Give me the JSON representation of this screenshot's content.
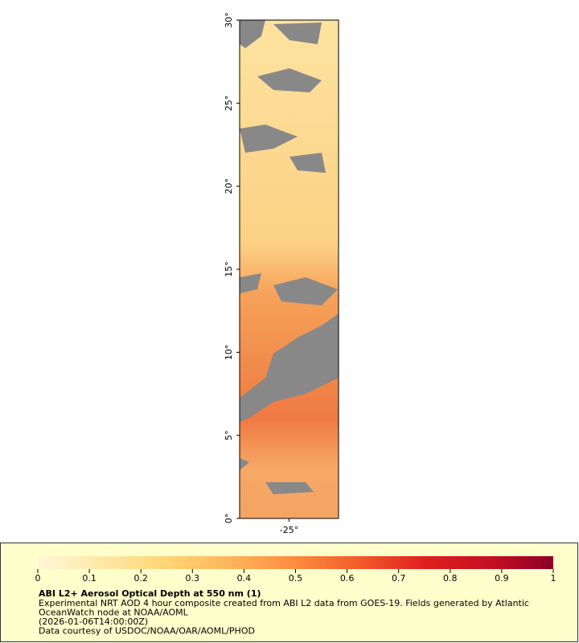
{
  "map": {
    "xlim": [
      -28,
      -22
    ],
    "xticks": [
      {
        "value": -25,
        "label": "-25°"
      }
    ],
    "ylim": [
      0,
      30
    ],
    "yticks": [
      {
        "value": 0,
        "label": "0°"
      },
      {
        "value": 5,
        "label": "5°"
      },
      {
        "value": 10,
        "label": "10°"
      },
      {
        "value": 15,
        "label": "15°"
      },
      {
        "value": 20,
        "label": "20°"
      },
      {
        "value": 25,
        "label": "25°"
      },
      {
        "value": 30,
        "label": "30°"
      }
    ]
  },
  "legend": {
    "title": "ABI L2+ Aerosol Optical Depth at 550 nm (1)",
    "colorbar": {
      "range": [
        0,
        1
      ],
      "ticks": [
        0,
        0.1,
        0.2,
        0.3,
        0.4,
        0.5,
        0.6,
        0.7,
        0.8,
        0.9,
        1
      ],
      "colors": [
        "#fff7d8",
        "#fee8a6",
        "#fed576",
        "#fdb45a",
        "#fc8c3e",
        "#f25a2c",
        "#e0201e",
        "#c50f22",
        "#8e0028"
      ]
    },
    "lines": [
      "Experimental NRT AOD 4 hour composite created from ABI L2 data from GOES-19. Fields generated by Atlantic",
      "OceanWatch node at NOAA/AOML",
      "(2026-01-06T14:00:00Z)",
      "Data courtesy of USDOC/NOAA/OAR/AOML/PHOD"
    ]
  }
}
